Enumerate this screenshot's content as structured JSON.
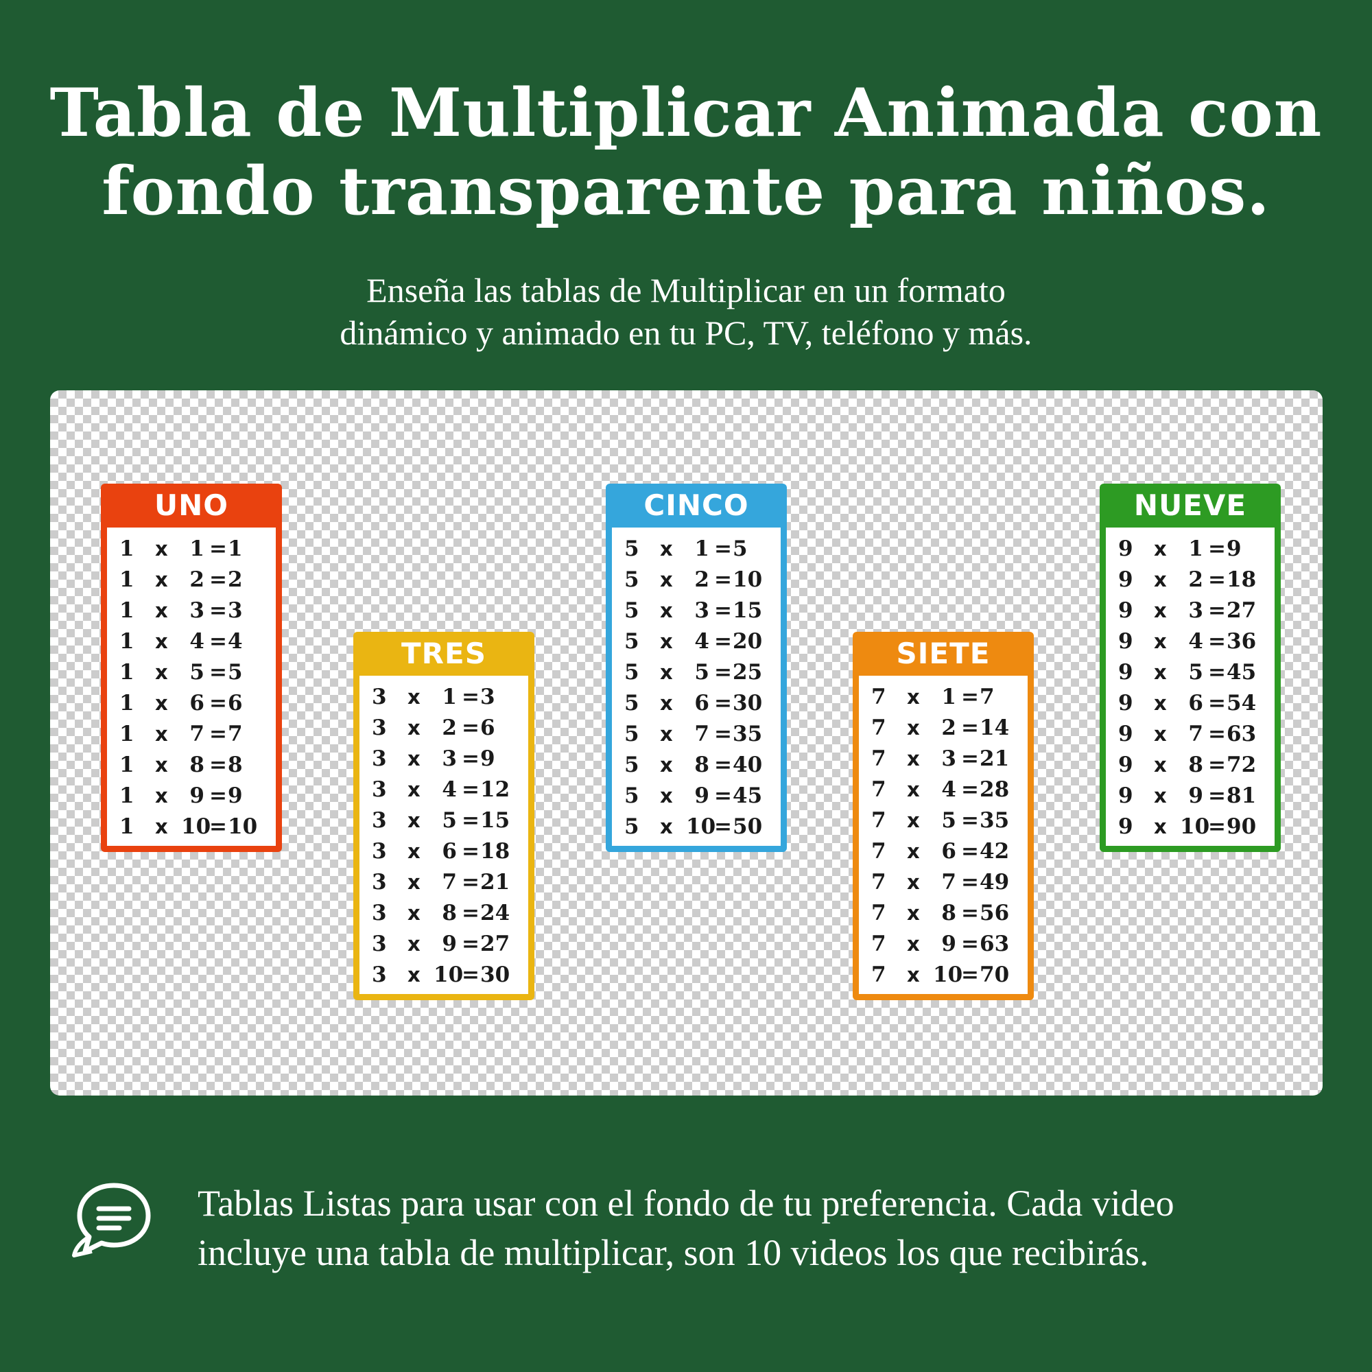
{
  "title": {
    "line1": "Tabla de Multiplicar Animada con",
    "line2": "fondo transparente para niños."
  },
  "subtitle": {
    "line1": "Enseña las tablas de Multiplicar en un formato",
    "line2": "dinámico y animado en tu PC, TV, teléfono y más."
  },
  "tables": [
    {
      "name": "UNO",
      "color": "#e9420f",
      "rows": [
        {
          "a": "1",
          "x": "x",
          "b": "1",
          "eq": "=",
          "r": "1"
        },
        {
          "a": "1",
          "x": "x",
          "b": "2",
          "eq": "=",
          "r": "2"
        },
        {
          "a": "1",
          "x": "x",
          "b": "3",
          "eq": "=",
          "r": "3"
        },
        {
          "a": "1",
          "x": "x",
          "b": "4",
          "eq": "=",
          "r": "4"
        },
        {
          "a": "1",
          "x": "x",
          "b": "5",
          "eq": "=",
          "r": "5"
        },
        {
          "a": "1",
          "x": "x",
          "b": "6",
          "eq": "=",
          "r": "6"
        },
        {
          "a": "1",
          "x": "x",
          "b": "7",
          "eq": "=",
          "r": "7"
        },
        {
          "a": "1",
          "x": "x",
          "b": "8",
          "eq": "=",
          "r": "8"
        },
        {
          "a": "1",
          "x": "x",
          "b": "9",
          "eq": "=",
          "r": "9"
        },
        {
          "a": "1",
          "x": "x",
          "b": "10",
          "eq": "=",
          "r": "10"
        }
      ]
    },
    {
      "name": "TRES",
      "color": "#eab512",
      "rows": [
        {
          "a": "3",
          "x": "x",
          "b": "1",
          "eq": "=",
          "r": "3"
        },
        {
          "a": "3",
          "x": "x",
          "b": "2",
          "eq": "=",
          "r": "6"
        },
        {
          "a": "3",
          "x": "x",
          "b": "3",
          "eq": "=",
          "r": "9"
        },
        {
          "a": "3",
          "x": "x",
          "b": "4",
          "eq": "=",
          "r": "12"
        },
        {
          "a": "3",
          "x": "x",
          "b": "5",
          "eq": "=",
          "r": "15"
        },
        {
          "a": "3",
          "x": "x",
          "b": "6",
          "eq": "=",
          "r": "18"
        },
        {
          "a": "3",
          "x": "x",
          "b": "7",
          "eq": "=",
          "r": "21"
        },
        {
          "a": "3",
          "x": "x",
          "b": "8",
          "eq": "=",
          "r": "24"
        },
        {
          "a": "3",
          "x": "x",
          "b": "9",
          "eq": "=",
          "r": "27"
        },
        {
          "a": "3",
          "x": "x",
          "b": "10",
          "eq": "=",
          "r": "30"
        }
      ]
    },
    {
      "name": "CINCO",
      "color": "#35a6dc",
      "rows": [
        {
          "a": "5",
          "x": "x",
          "b": "1",
          "eq": "=",
          "r": "5"
        },
        {
          "a": "5",
          "x": "x",
          "b": "2",
          "eq": "=",
          "r": "10"
        },
        {
          "a": "5",
          "x": "x",
          "b": "3",
          "eq": "=",
          "r": "15"
        },
        {
          "a": "5",
          "x": "x",
          "b": "4",
          "eq": "=",
          "r": "20"
        },
        {
          "a": "5",
          "x": "x",
          "b": "5",
          "eq": "=",
          "r": "25"
        },
        {
          "a": "5",
          "x": "x",
          "b": "6",
          "eq": "=",
          "r": "30"
        },
        {
          "a": "5",
          "x": "x",
          "b": "7",
          "eq": "=",
          "r": "35"
        },
        {
          "a": "5",
          "x": "x",
          "b": "8",
          "eq": "=",
          "r": "40"
        },
        {
          "a": "5",
          "x": "x",
          "b": "9",
          "eq": "=",
          "r": "45"
        },
        {
          "a": "5",
          "x": "x",
          "b": "10",
          "eq": "=",
          "r": "50"
        }
      ]
    },
    {
      "name": "SIETE",
      "color": "#ee8a10",
      "rows": [
        {
          "a": "7",
          "x": "x",
          "b": "1",
          "eq": "=",
          "r": "7"
        },
        {
          "a": "7",
          "x": "x",
          "b": "2",
          "eq": "=",
          "r": "14"
        },
        {
          "a": "7",
          "x": "x",
          "b": "3",
          "eq": "=",
          "r": "21"
        },
        {
          "a": "7",
          "x": "x",
          "b": "4",
          "eq": "=",
          "r": "28"
        },
        {
          "a": "7",
          "x": "x",
          "b": "5",
          "eq": "=",
          "r": "35"
        },
        {
          "a": "7",
          "x": "x",
          "b": "6",
          "eq": "=",
          "r": "42"
        },
        {
          "a": "7",
          "x": "x",
          "b": "7",
          "eq": "=",
          "r": "49"
        },
        {
          "a": "7",
          "x": "x",
          "b": "8",
          "eq": "=",
          "r": "56"
        },
        {
          "a": "7",
          "x": "x",
          "b": "9",
          "eq": "=",
          "r": "63"
        },
        {
          "a": "7",
          "x": "x",
          "b": "10",
          "eq": "=",
          "r": "70"
        }
      ]
    },
    {
      "name": "NUEVE",
      "color": "#2d9b23",
      "rows": [
        {
          "a": "9",
          "x": "x",
          "b": "1",
          "eq": "=",
          "r": "9"
        },
        {
          "a": "9",
          "x": "x",
          "b": "2",
          "eq": "=",
          "r": "18"
        },
        {
          "a": "9",
          "x": "x",
          "b": "3",
          "eq": "=",
          "r": "27"
        },
        {
          "a": "9",
          "x": "x",
          "b": "4",
          "eq": "=",
          "r": "36"
        },
        {
          "a": "9",
          "x": "x",
          "b": "5",
          "eq": "=",
          "r": "45"
        },
        {
          "a": "9",
          "x": "x",
          "b": "6",
          "eq": "=",
          "r": "54"
        },
        {
          "a": "9",
          "x": "x",
          "b": "7",
          "eq": "=",
          "r": "63"
        },
        {
          "a": "9",
          "x": "x",
          "b": "8",
          "eq": "=",
          "r": "72"
        },
        {
          "a": "9",
          "x": "x",
          "b": "9",
          "eq": "=",
          "r": "81"
        },
        {
          "a": "9",
          "x": "x",
          "b": "10",
          "eq": "=",
          "r": "90"
        }
      ]
    }
  ],
  "footer": {
    "icon": "chat-bubbles-icon",
    "line1": "Tablas Listas para usar con el fondo de tu preferencia. Cada video",
    "line2": "incluye una tabla de multiplicar, son 10 videos los que recibirás."
  },
  "colors": {
    "background": "#1f5b32",
    "text": "#ffffff"
  }
}
